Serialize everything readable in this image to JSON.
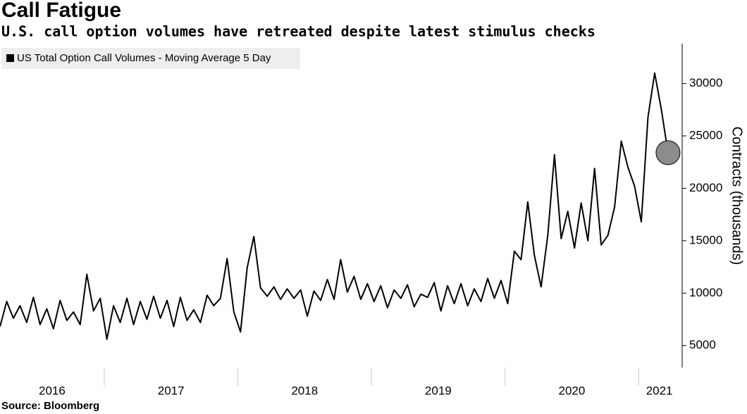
{
  "chart_data": {
    "type": "line",
    "title": "Call Fatigue",
    "subtitle": "U.S. call option volumes have retreated despite latest stimulus checks",
    "y_label": "Contracts (thousands)",
    "source": "Source: Bloomberg",
    "xlim": [
      2016.22,
      2021.31
    ],
    "xticks": [
      {
        "value": 2016,
        "label": "2016"
      },
      {
        "value": 2017,
        "label": "2017"
      },
      {
        "value": 2018,
        "label": "2018"
      },
      {
        "value": 2019,
        "label": "2019"
      },
      {
        "value": 2020,
        "label": "2020"
      },
      {
        "value": 2021,
        "label": "2021"
      }
    ],
    "ylim": [
      2900,
      33800
    ],
    "yticks": [
      5000,
      10000,
      15000,
      20000,
      25000,
      30000
    ],
    "grid": false,
    "x": [
      2016.22,
      2016.27,
      2016.32,
      2016.37,
      2016.42,
      2016.47,
      2016.52,
      2016.57,
      2016.62,
      2016.67,
      2016.72,
      2016.77,
      2016.82,
      2016.87,
      2016.92,
      2016.97,
      2017.02,
      2017.07,
      2017.12,
      2017.17,
      2017.22,
      2017.27,
      2017.32,
      2017.37,
      2017.42,
      2017.47,
      2017.52,
      2017.57,
      2017.62,
      2017.67,
      2017.72,
      2017.77,
      2017.82,
      2017.87,
      2017.92,
      2017.97,
      2018.02,
      2018.07,
      2018.12,
      2018.17,
      2018.22,
      2018.27,
      2018.32,
      2018.37,
      2018.42,
      2018.47,
      2018.52,
      2018.57,
      2018.62,
      2018.67,
      2018.72,
      2018.77,
      2018.82,
      2018.87,
      2018.92,
      2018.97,
      2019.02,
      2019.07,
      2019.12,
      2019.17,
      2019.22,
      2019.27,
      2019.32,
      2019.37,
      2019.42,
      2019.47,
      2019.52,
      2019.57,
      2019.62,
      2019.67,
      2019.72,
      2019.77,
      2019.82,
      2019.87,
      2019.92,
      2019.97,
      2020.02,
      2020.07,
      2020.12,
      2020.17,
      2020.22,
      2020.27,
      2020.32,
      2020.37,
      2020.42,
      2020.47,
      2020.52,
      2020.57,
      2020.62,
      2020.67,
      2020.72,
      2020.77,
      2020.82,
      2020.87,
      2020.92,
      2020.97,
      2021.02,
      2021.07,
      2021.12,
      2021.17,
      2021.22
    ],
    "series": [
      {
        "name": "US Total Option Call Volumes - Moving Average 5 Day",
        "color": "#000000",
        "values": [
          6800,
          9200,
          7600,
          8800,
          7200,
          9600,
          7000,
          8500,
          6600,
          9300,
          7400,
          8200,
          7000,
          11800,
          8300,
          9500,
          5600,
          8800,
          7200,
          9500,
          7000,
          9200,
          7500,
          9700,
          7600,
          9300,
          6800,
          9600,
          7400,
          8400,
          7200,
          9800,
          8800,
          9500,
          13300,
          8200,
          6300,
          12400,
          15400,
          10500,
          9700,
          10600,
          9400,
          10400,
          9500,
          10300,
          7800,
          10200,
          9300,
          11300,
          9400,
          13200,
          10100,
          11600,
          9400,
          10900,
          9200,
          10700,
          8600,
          10300,
          9500,
          10800,
          8700,
          9900,
          9600,
          11000,
          8300,
          10700,
          9000,
          10900,
          8800,
          10400,
          9200,
          11400,
          9500,
          11200,
          9000,
          14000,
          13200,
          18700,
          13600,
          10600,
          15500,
          23200,
          15200,
          17800,
          14300,
          18600,
          15000,
          21900,
          14600,
          15500,
          18200,
          24500,
          22000,
          20200,
          16800,
          26800,
          31000,
          27500,
          23400
        ]
      }
    ]
  }
}
